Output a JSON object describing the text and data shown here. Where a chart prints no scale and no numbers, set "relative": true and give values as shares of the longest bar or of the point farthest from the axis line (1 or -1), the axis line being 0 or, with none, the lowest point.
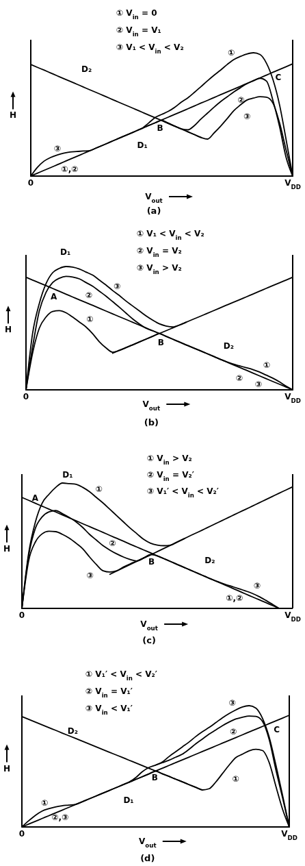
{
  "chart_data": [
    {
      "type": "line",
      "relative": true,
      "title": "(a)",
      "xlabel": "V$_{out}$",
      "ylabel": "H",
      "categories": [
        "0",
        null,
        null,
        null,
        null,
        null,
        null,
        null,
        null,
        null,
        null,
        null,
        null,
        null,
        null,
        null,
        null,
        null,
        null,
        null,
        null,
        null,
        null,
        null,
        null,
        null,
        null,
        null,
        null,
        null,
        null,
        null,
        null,
        null,
        null,
        null,
        null,
        null,
        null,
        null,
        "V$_{DD}$"
      ],
      "series": [
        {
          "color": "#000000",
          "values": [
            0,
            0.023,
            0.046,
            0.068,
            0.091,
            0.114,
            0.137,
            0.159,
            0.182,
            0.205,
            0.228,
            0.25,
            0.273,
            0.296,
            0.319,
            0.341,
            0.364,
            0.387,
            0.41,
            0.432,
            0.455,
            0.478,
            0.501,
            0.523,
            0.546,
            0.569,
            0.592,
            0.614,
            0.637,
            0.66,
            0.683,
            0.705,
            0.728,
            0.751,
            0.774,
            0.796,
            0.819,
            0.842,
            0.865,
            0.887,
            0.91
          ]
        },
        {
          "color": "#000000",
          "values": [
            0.905,
            0.882,
            0.86,
            0.837,
            0.814,
            0.791,
            0.769,
            0.746,
            0.723,
            0.7,
            0.678,
            0.655,
            0.632,
            0.609,
            0.586,
            0.564,
            0.541,
            0.518,
            0.495,
            0.473,
            0.45,
            0.427,
            0.404,
            0.382,
            0.359,
            0.336,
            0.313,
            null,
            null,
            null,
            null,
            null,
            null,
            null,
            null,
            null,
            null,
            null,
            null,
            null,
            null
          ]
        },
        {
          "color": "#000000",
          "values": [
            null,
            null,
            null,
            null,
            null,
            null,
            null,
            null,
            null,
            null,
            null,
            null,
            null,
            null,
            null,
            null,
            null,
            0.387,
            0.43,
            0.475,
            0.5,
            0.525,
            0.558,
            0.6,
            0.635,
            0.679,
            0.726,
            0.773,
            0.818,
            0.86,
            0.905,
            0.945,
            0.97,
            0.99,
            1,
            0.986,
            0.915,
            0.78,
            0.576,
            0.294,
            0
          ]
        },
        {
          "color": "#000000",
          "values": [
            null,
            null,
            null,
            null,
            null,
            null,
            null,
            null,
            null,
            null,
            null,
            null,
            null,
            null,
            null,
            null,
            null,
            null,
            null,
            null,
            0.452,
            0.43,
            0.405,
            0.382,
            0.375,
            0.41,
            0.463,
            0.511,
            0.559,
            0.604,
            0.643,
            0.682,
            0.716,
            0.749,
            0.772,
            0.793,
            0.77,
            0.61,
            0.4,
            0.15,
            0
          ]
        },
        {
          "color": "#000000",
          "values": [
            0,
            0.07,
            0.12,
            0.15,
            0.17,
            0.185,
            0.195,
            0.199,
            0.203,
            0.206,
            0.228,
            0.25,
            0.273,
            0.296,
            0.319,
            0.341,
            0.364,
            0.387,
            0.41,
            0.432,
            0.452,
            0.427,
            0.404,
            0.382,
            0.359,
            0.336,
            0.313,
            0.3,
            0.35,
            0.405,
            0.466,
            0.53,
            0.576,
            0.616,
            0.632,
            0.644,
            0.64,
            0.59,
            0.43,
            0.21,
            0
          ]
        }
      ],
      "annotations": [
        "① V$_{in}$ = 0",
        "② V$_{in}$ = V₁",
        "③ V₁ < V$_{in}$ < V₂",
        "①",
        "②",
        "③",
        "③",
        "①,②",
        "D₂",
        "D₁",
        "B",
        "C"
      ]
    },
    {
      "type": "line",
      "relative": true,
      "title": "(b)",
      "xlabel": "V$_{out}$",
      "ylabel": "H",
      "categories": [
        "0",
        null,
        null,
        null,
        null,
        null,
        null,
        null,
        null,
        null,
        null,
        null,
        null,
        null,
        null,
        null,
        null,
        null,
        null,
        null,
        null,
        null,
        null,
        null,
        null,
        null,
        null,
        null,
        null,
        null,
        null,
        null,
        null,
        null,
        null,
        null,
        null,
        null,
        null,
        null,
        "V$_{DD}$"
      ],
      "series": [
        {
          "color": "#000000",
          "values": [
            0.913,
            0.89,
            0.867,
            0.845,
            0.822,
            0.799,
            0.776,
            0.753,
            0.73,
            0.708,
            0.685,
            0.662,
            0.639,
            0.616,
            0.593,
            0.571,
            0.548,
            0.525,
            0.502,
            0.479,
            0.457,
            0.434,
            0.411,
            0.388,
            0.365,
            0.342,
            0.32,
            0.297,
            0.274,
            0.251,
            0.228,
            0.205,
            0.183,
            0.16,
            0.137,
            0.114,
            0.091,
            0.068,
            0.046,
            0.023,
            0
          ]
        },
        {
          "color": "#000000",
          "values": [
            null,
            null,
            null,
            null,
            null,
            null,
            null,
            null,
            null,
            null,
            null,
            null,
            null,
            0.297,
            0.32,
            0.342,
            0.365,
            0.388,
            0.411,
            0.434,
            0.457,
            0.479,
            0.502,
            0.525,
            0.548,
            0.571,
            0.593,
            0.616,
            0.639,
            0.662,
            0.685,
            0.708,
            0.73,
            0.753,
            0.776,
            0.799,
            0.822,
            0.845,
            0.867,
            0.89,
            0.913
          ]
        },
        {
          "color": "#000000",
          "values": [
            0,
            0.3,
            0.5,
            0.59,
            0.635,
            0.642,
            0.625,
            0.59,
            0.55,
            0.51,
            0.455,
            0.39,
            0.34,
            0.305,
            0.32,
            0.342,
            0.365,
            0.388,
            0.411,
            0.434,
            0.457,
            0.434,
            0.411,
            0.388,
            0.365,
            0.342,
            0.32,
            0.297,
            0.274,
            0.251,
            0.23,
            0.21,
            0.195,
            0.18,
            0.165,
            0.145,
            0.12,
            0.095,
            0.065,
            0.03,
            0
          ]
        },
        {
          "color": "#000000",
          "values": [
            0,
            0.35,
            0.64,
            0.79,
            0.87,
            0.905,
            0.92,
            0.915,
            0.9,
            0.87,
            0.84,
            0.8,
            0.76,
            0.715,
            0.67,
            0.622,
            0.575,
            0.535,
            0.5,
            0.479,
            0.457,
            null,
            null,
            null,
            null,
            null,
            null,
            null,
            null,
            null,
            null,
            null,
            null,
            null,
            null,
            null,
            null,
            null,
            null,
            null,
            null
          ]
        },
        {
          "color": "#000000",
          "values": [
            0,
            0.46,
            0.7,
            0.86,
            0.95,
            0.985,
            1,
            0.995,
            0.98,
            0.955,
            0.93,
            0.89,
            0.85,
            0.805,
            0.765,
            0.72,
            0.68,
            0.64,
            0.6,
            0.565,
            0.535,
            0.518,
            0.51,
            0.525,
            0.548,
            null,
            null,
            null,
            null,
            null,
            null,
            null,
            null,
            null,
            null,
            null,
            null,
            null,
            null,
            null,
            null
          ]
        }
      ],
      "annotations": [
        "① V₁ < V$_{in}$ < V₂",
        "② V$_{in}$ = V₂",
        "③ V$_{in}$ > V₂",
        "D₁",
        "A",
        "B",
        "D₂",
        "①",
        "②",
        "③",
        "①",
        "②",
        "③"
      ]
    },
    {
      "type": "line",
      "relative": true,
      "title": "(c)",
      "xlabel": "V$_{out}$",
      "ylabel": "H",
      "categories": [
        "0",
        null,
        null,
        null,
        null,
        null,
        null,
        null,
        null,
        null,
        null,
        null,
        null,
        null,
        null,
        null,
        null,
        null,
        null,
        null,
        null,
        null,
        null,
        null,
        null,
        null,
        null,
        null,
        null,
        null,
        null,
        null,
        null,
        null,
        null,
        null,
        null,
        null,
        null,
        null,
        "V$_{DD}$"
      ],
      "series": [
        {
          "color": "#000000",
          "values": [
            0.885,
            0.862,
            0.838,
            0.815,
            0.792,
            0.769,
            0.745,
            0.722,
            0.699,
            0.675,
            0.652,
            0.629,
            0.606,
            0.582,
            0.559,
            0.536,
            0.512,
            0.489,
            0.466,
            0.443,
            0.419,
            0.396,
            0.373,
            0.349,
            0.326,
            0.303,
            0.279,
            0.256,
            0.233,
            0.21,
            0.186,
            0.163,
            0.14,
            0.116,
            0.093,
            0.07,
            0.047,
            0.023,
            0,
            null,
            null
          ]
        },
        {
          "color": "#000000",
          "values": [
            null,
            null,
            null,
            null,
            null,
            null,
            null,
            null,
            null,
            null,
            null,
            null,
            null,
            0.272,
            0.298,
            0.324,
            0.35,
            0.376,
            0.402,
            0.427,
            0.453,
            0.479,
            0.505,
            0.531,
            0.557,
            0.583,
            0.608,
            0.634,
            0.66,
            0.686,
            0.712,
            0.738,
            0.764,
            0.789,
            0.815,
            0.841,
            0.867,
            0.893,
            0.919,
            0.944,
            0.97
          ]
        },
        {
          "color": "#000000",
          "values": [
            0,
            0.44,
            0.69,
            0.84,
            0.91,
            0.965,
            1,
            0.995,
            0.99,
            0.965,
            0.93,
            0.885,
            0.84,
            0.79,
            0.74,
            0.69,
            0.64,
            0.595,
            0.55,
            0.52,
            0.505,
            0.5,
            0.505,
            0.531,
            0.557,
            null,
            null,
            null,
            null,
            null,
            null,
            null,
            null,
            null,
            null,
            null,
            null,
            null,
            null,
            null,
            null
          ]
        },
        {
          "color": "#000000",
          "values": [
            0,
            0.42,
            0.64,
            0.73,
            0.77,
            0.78,
            0.755,
            0.725,
            0.69,
            0.645,
            0.59,
            0.545,
            0.5,
            0.465,
            0.435,
            0.41,
            0.39,
            0.378,
            0.402,
            0.427,
            null,
            null,
            null,
            null,
            null,
            null,
            null,
            null,
            null,
            null,
            null,
            null,
            null,
            null,
            null,
            null,
            null,
            null,
            null,
            null,
            null
          ]
        },
        {
          "color": "#000000",
          "values": [
            0,
            0.38,
            0.53,
            0.595,
            0.615,
            0.612,
            0.59,
            0.56,
            0.52,
            0.475,
            0.41,
            0.35,
            0.3,
            0.29,
            0.3,
            0.33,
            0.355,
            0.378,
            0.402,
            0.43,
            0.419,
            0.396,
            0.373,
            0.349,
            0.326,
            0.303,
            0.279,
            0.256,
            0.233,
            0.212,
            0.192,
            0.175,
            0.158,
            0.14,
            0.12,
            0.095,
            0.065,
            0.033,
            0,
            null,
            null
          ]
        }
      ],
      "annotations": [
        "① V$_{in}$ > V₂",
        "② V$_{in}$ = V₂′",
        "③ V₁′ < V$_{in}$ < V₂′",
        "D₁",
        "A",
        "①",
        "②",
        "③",
        "B",
        "D₂",
        "①,②",
        "③"
      ]
    },
    {
      "type": "line",
      "relative": true,
      "title": "(d)",
      "xlabel": "V$_{out}$",
      "ylabel": "H",
      "categories": [
        "0",
        null,
        null,
        null,
        null,
        null,
        null,
        null,
        null,
        null,
        null,
        null,
        null,
        null,
        null,
        null,
        null,
        null,
        null,
        null,
        null,
        null,
        null,
        null,
        null,
        null,
        null,
        null,
        null,
        null,
        null,
        null,
        null,
        null,
        null,
        null,
        null,
        null,
        null,
        null,
        "V$_{DD}$"
      ],
      "series": [
        {
          "color": "#000000",
          "values": [
            0,
            0.023,
            0.046,
            0.069,
            0.092,
            0.115,
            0.138,
            0.161,
            0.184,
            0.207,
            0.23,
            0.253,
            0.276,
            0.299,
            0.322,
            0.345,
            0.368,
            0.391,
            0.414,
            0.437,
            0.461,
            0.484,
            0.507,
            0.53,
            0.553,
            0.576,
            0.599,
            0.622,
            0.645,
            0.668,
            0.691,
            0.714,
            0.737,
            0.76,
            0.783,
            0.806,
            0.829,
            0.852,
            0.875,
            0.898,
            0.921
          ]
        },
        {
          "color": "#000000",
          "values": [
            0.91,
            0.888,
            0.865,
            0.843,
            0.82,
            0.798,
            0.775,
            0.753,
            0.731,
            0.708,
            0.686,
            0.663,
            0.641,
            0.618,
            0.596,
            0.574,
            0.551,
            0.529,
            0.506,
            0.484,
            0.462,
            0.439,
            0.417,
            0.394,
            0.372,
            0.349,
            0.327,
            0.305,
            null,
            null,
            null,
            null,
            null,
            null,
            null,
            null,
            null,
            null,
            null,
            null,
            null
          ]
        },
        {
          "color": "#000000",
          "values": [
            0,
            0.05,
            0.095,
            0.13,
            0.15,
            0.165,
            0.175,
            0.18,
            0.186,
            0.207,
            0.23,
            0.253,
            0.276,
            0.299,
            0.322,
            0.345,
            0.368,
            0.391,
            0.414,
            0.437,
            0.461,
            0.439,
            0.417,
            0.394,
            0.372,
            0.349,
            0.327,
            0.305,
            0.315,
            0.37,
            0.44,
            0.51,
            0.572,
            0.6,
            0.628,
            0.64,
            0.63,
            0.53,
            0.335,
            0.145,
            0
          ]
        },
        {
          "color": "#000000",
          "values": [
            null,
            null,
            null,
            null,
            null,
            null,
            null,
            null,
            null,
            null,
            null,
            null,
            null,
            null,
            null,
            null,
            null,
            null,
            null,
            null,
            0.51,
            0.53,
            0.55,
            0.575,
            0.6,
            0.64,
            0.685,
            0.725,
            0.765,
            0.8,
            0.835,
            0.865,
            0.89,
            0.905,
            0.915,
            0.912,
            0.87,
            0.72,
            0.47,
            0.24,
            0
          ]
        },
        {
          "color": "#000000",
          "values": [
            null,
            null,
            null,
            null,
            null,
            null,
            null,
            null,
            null,
            null,
            null,
            null,
            null,
            null,
            null,
            null,
            0.368,
            0.405,
            0.455,
            0.49,
            0.51,
            0.535,
            0.58,
            0.62,
            0.66,
            0.7,
            0.745,
            0.785,
            0.82,
            0.86,
            0.9,
            0.935,
            0.965,
            0.99,
            1,
            0.98,
            0.895,
            0.74,
            0.51,
            0.26,
            0
          ]
        }
      ],
      "annotations": [
        "① V₁′ < V$_{in}$ < V₂′",
        "② V$_{in}$ = V₁′",
        "③ V$_{in}$ < V₁′",
        "③",
        "②",
        "①",
        "C",
        "D₂",
        "D₁",
        "B",
        "①",
        "②,③"
      ]
    }
  ]
}
